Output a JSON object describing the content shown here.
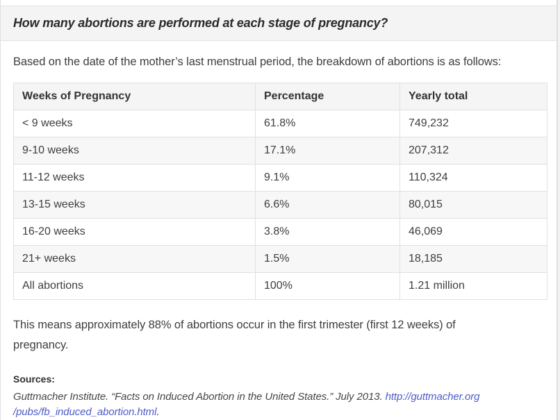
{
  "header": {
    "title": "How many abortions are performed at each stage of pregnancy?"
  },
  "intro_text": "Based on the date of the mother’s last menstrual period, the breakdown of abortions is as follows:",
  "table": {
    "columns": [
      "Weeks of Pregnancy",
      "Percentage",
      "Yearly total"
    ],
    "rows": [
      {
        "weeks": "< 9 weeks",
        "percentage": "61.8%",
        "yearly_total": "749,232"
      },
      {
        "weeks": "9-10 weeks",
        "percentage": "17.1%",
        "yearly_total": "207,312"
      },
      {
        "weeks": "11-12 weeks",
        "percentage": "9.1%",
        "yearly_total": "110,324"
      },
      {
        "weeks": "13-15 weeks",
        "percentage": "6.6%",
        "yearly_total": "80,015"
      },
      {
        "weeks": "16-20 weeks",
        "percentage": "3.8%",
        "yearly_total": "46,069"
      },
      {
        "weeks": "21+ weeks",
        "percentage": "1.5%",
        "yearly_total": "18,185"
      },
      {
        "weeks": "All abortions",
        "percentage": "100%",
        "yearly_total": "1.21 million"
      }
    ]
  },
  "summary_text": "This means approximately 88% of abortions occur in the first trimester (first 12 weeks) of pregnancy.",
  "sources": {
    "heading": "Sources:",
    "citation": "Guttmacher Institute. “Facts on Induced Abortion in the United States.” July 2013. ",
    "link_line1": "http://guttmacher.org",
    "link_line2": "/pubs/fb_induced_abortion.html",
    "suffix": "."
  },
  "colors": {
    "link": "#4c5bc7",
    "band_background": "#f4f4f4",
    "row_stripe": "#f7f7f7",
    "border": "#e0e0e0",
    "body_text": "#3e3e3e"
  }
}
